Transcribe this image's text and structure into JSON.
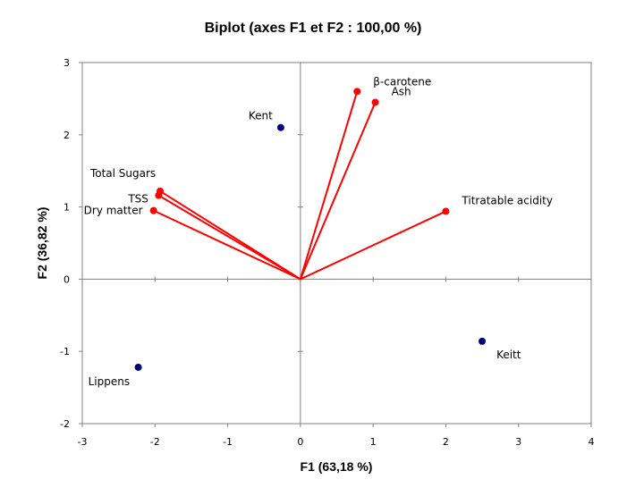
{
  "chart_data": {
    "type": "scatter",
    "title": "Biplot (axes F1 et F2 : 100,00 %)",
    "xlabel": "F1 (63,18 %)",
    "ylabel": "F2 (36,82 %)",
    "xlim": [
      -3,
      4
    ],
    "ylim": [
      -2,
      3
    ],
    "xticks": [
      -3,
      -2,
      -1,
      0,
      1,
      2,
      3,
      4
    ],
    "yticks": [
      -2,
      -1,
      0,
      1,
      2,
      3
    ],
    "xtick_labels": [
      "-3",
      "-2",
      "-1",
      "0",
      "1",
      "2",
      "3",
      "4"
    ],
    "ytick_labels": [
      "-2",
      "-1",
      "0",
      "1",
      "2",
      "3"
    ],
    "grid": false,
    "series": [
      {
        "kind": "observations",
        "color": "#00007f",
        "points": [
          {
            "label": "Kent",
            "x": -0.27,
            "y": 2.1
          },
          {
            "label": "Keitt",
            "x": 2.5,
            "y": -0.86
          },
          {
            "label": "Lippens",
            "x": -2.23,
            "y": -1.22
          }
        ]
      },
      {
        "kind": "variables",
        "color": "#ff0000",
        "vectors": [
          {
            "label": "β-carotene",
            "x": 0.78,
            "y": 2.6
          },
          {
            "label": "Ash",
            "x": 1.03,
            "y": 2.45
          },
          {
            "label": "Titratable acidity",
            "x": 2.0,
            "y": 0.94
          },
          {
            "label": "Total Sugars",
            "x": -1.93,
            "y": 1.22
          },
          {
            "label": "TSS",
            "x": -1.95,
            "y": 1.16
          },
          {
            "label": "Dry matter",
            "x": -2.02,
            "y": 0.95
          }
        ]
      }
    ]
  }
}
